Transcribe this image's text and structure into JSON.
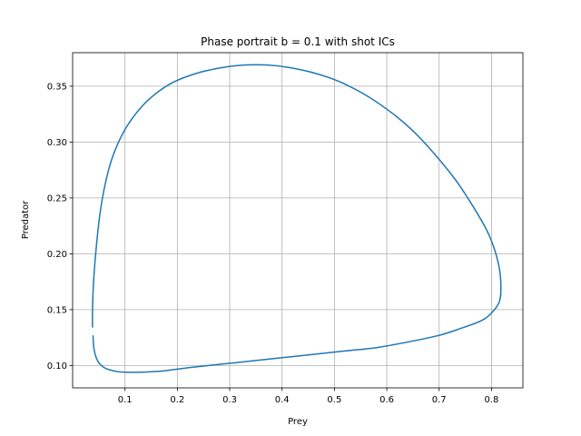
{
  "chart_data": {
    "type": "line",
    "title": "Phase portrait b = 0.1 with shot ICs",
    "xlabel": "Prey",
    "ylabel": "Predator",
    "xlim": [
      0.0,
      0.86
    ],
    "ylim": [
      0.08,
      0.38
    ],
    "xticks": [
      0.1,
      0.2,
      0.3,
      0.4,
      0.5,
      0.6,
      0.7,
      0.8
    ],
    "xtick_labels": [
      "0.1",
      "0.2",
      "0.3",
      "0.4",
      "0.5",
      "0.6",
      "0.7",
      "0.8"
    ],
    "yticks": [
      0.1,
      0.15,
      0.2,
      0.25,
      0.3,
      0.35
    ],
    "ytick_labels": [
      "0.10",
      "0.15",
      "0.20",
      "0.25",
      "0.30",
      "0.35"
    ],
    "grid": true,
    "series": [
      {
        "color": "#1f77b4",
        "x": [
          0.038,
          0.038,
          0.04,
          0.045,
          0.052,
          0.062,
          0.075,
          0.095,
          0.12,
          0.15,
          0.19,
          0.24,
          0.29,
          0.33,
          0.37,
          0.41,
          0.46,
          0.51,
          0.56,
          0.61,
          0.65,
          0.69,
          0.73,
          0.76,
          0.79,
          0.805,
          0.815,
          0.818,
          0.815,
          0.8,
          0.78,
          0.74,
          0.7,
          0.64,
          0.58,
          0.52,
          0.46,
          0.4,
          0.34,
          0.28,
          0.22,
          0.17,
          0.13,
          0.1,
          0.08,
          0.065,
          0.055,
          0.048,
          0.043,
          0.04,
          0.039
        ],
        "y": [
          0.134,
          0.15,
          0.175,
          0.205,
          0.235,
          0.262,
          0.285,
          0.307,
          0.325,
          0.34,
          0.353,
          0.362,
          0.367,
          0.369,
          0.369,
          0.367,
          0.362,
          0.354,
          0.342,
          0.326,
          0.31,
          0.29,
          0.267,
          0.246,
          0.222,
          0.205,
          0.187,
          0.17,
          0.157,
          0.147,
          0.14,
          0.133,
          0.127,
          0.121,
          0.116,
          0.113,
          0.11,
          0.107,
          0.104,
          0.101,
          0.098,
          0.095,
          0.094,
          0.094,
          0.095,
          0.097,
          0.1,
          0.104,
          0.11,
          0.118,
          0.127
        ]
      }
    ]
  }
}
